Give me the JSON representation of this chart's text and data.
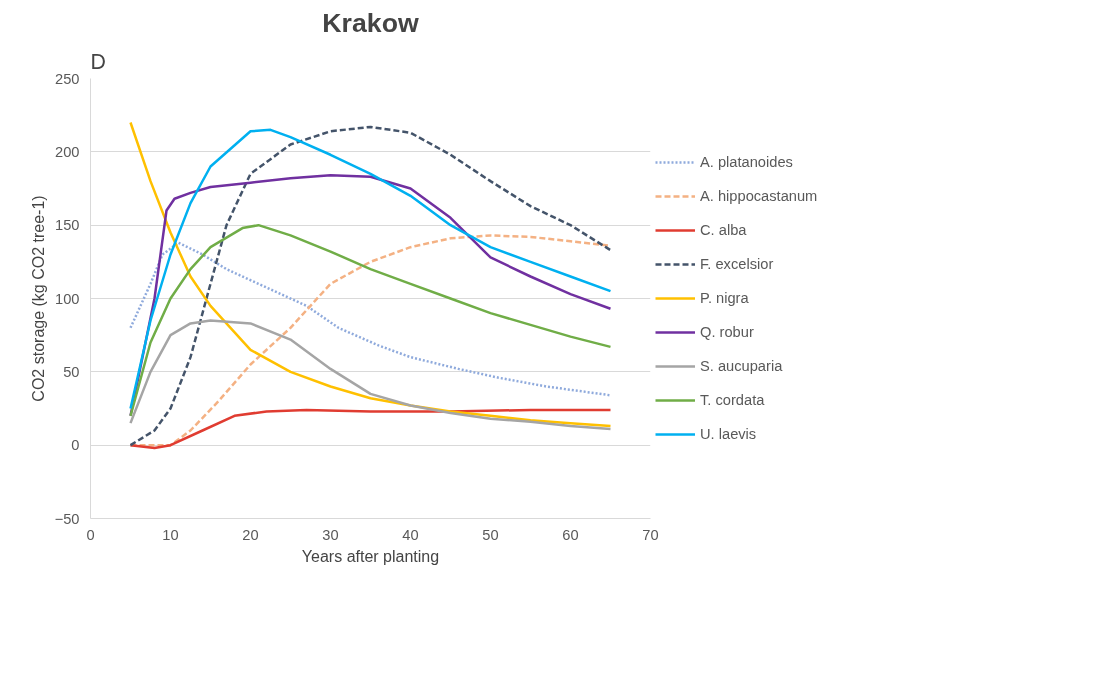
{
  "chart_data": {
    "type": "line",
    "title": "Krakow",
    "xlabel": "Years after planting",
    "ylabel": "CO2 storage (kg CO2 tree-1)",
    "annotations": [
      "D"
    ],
    "xlim": [
      0,
      70
    ],
    "ylim": [
      -50,
      250
    ],
    "xticks": [
      0,
      10,
      20,
      30,
      40,
      50,
      60,
      70
    ],
    "yticks": [
      -50,
      0,
      50,
      100,
      150,
      200,
      250
    ],
    "grid": "y",
    "legend": "right",
    "marker": "none",
    "series": [
      {
        "name": "A. platanoides",
        "color": "#8faadc",
        "line_style": "dotted",
        "x": [
          5,
          7.5,
          9,
          11,
          14,
          17,
          21,
          27,
          31,
          36,
          40,
          46,
          51,
          57,
          65
        ],
        "values": [
          80,
          110,
          130,
          138,
          130,
          120,
          110,
          95,
          80,
          68,
          60,
          52,
          46,
          40,
          34
        ]
      },
      {
        "name": "A. hippocastanum",
        "color": "#f4b183",
        "line_style": "dashed",
        "x": [
          5,
          8,
          10,
          12.5,
          16,
          20,
          25,
          30,
          35,
          40,
          45,
          50,
          55,
          60,
          65
        ],
        "values": [
          0,
          0,
          0,
          10,
          30,
          55,
          80,
          110,
          125,
          135,
          141,
          143,
          142,
          139,
          136
        ]
      },
      {
        "name": "C. alba",
        "color": "#e03c31",
        "line_style": "solid",
        "x": [
          5,
          8,
          10,
          14,
          18,
          22,
          27,
          35,
          45,
          55,
          65
        ],
        "values": [
          0,
          -2,
          0,
          10,
          20,
          23,
          24,
          23,
          23,
          24,
          24
        ]
      },
      {
        "name": "F. excelsior",
        "color": "#44546a",
        "line_style": "dashed",
        "x": [
          5,
          8,
          10,
          12.5,
          15,
          17,
          20,
          25,
          30,
          35,
          40,
          45,
          50,
          55,
          60,
          65
        ],
        "values": [
          0,
          10,
          25,
          60,
          110,
          150,
          185,
          205,
          214,
          217,
          213,
          198,
          180,
          163,
          150,
          133
        ]
      },
      {
        "name": "P. nigra",
        "color": "#ffc000",
        "line_style": "solid",
        "x": [
          5,
          7.5,
          10,
          12.5,
          15,
          20,
          25,
          30,
          35,
          40,
          45,
          50,
          55,
          60,
          65
        ],
        "values": [
          220,
          180,
          145,
          115,
          95,
          65,
          50,
          40,
          32,
          27,
          23,
          20,
          17,
          15,
          13
        ]
      },
      {
        "name": "Q. robur",
        "color": "#7030a0",
        "line_style": "solid",
        "x": [
          5,
          8,
          9.5,
          10.5,
          12.5,
          15,
          20,
          25,
          30,
          35,
          40,
          45,
          50,
          55,
          60,
          65
        ],
        "values": [
          20,
          100,
          160,
          168,
          172,
          176,
          179,
          182,
          184,
          183,
          175,
          155,
          128,
          115,
          103,
          93
        ]
      },
      {
        "name": "S. aucuparia",
        "color": "#a5a5a5",
        "line_style": "solid",
        "x": [
          5,
          7.5,
          10,
          12.5,
          15,
          20,
          25,
          30,
          35,
          40,
          45,
          50,
          55,
          60,
          65
        ],
        "values": [
          15,
          50,
          75,
          83,
          85,
          83,
          72,
          52,
          35,
          27,
          22,
          18,
          16,
          13,
          11
        ]
      },
      {
        "name": "T. cordata",
        "color": "#70ad47",
        "line_style": "solid",
        "x": [
          5,
          7.5,
          10,
          12.5,
          15,
          19,
          21,
          25,
          30,
          35,
          40,
          45,
          50,
          55,
          60,
          65
        ],
        "values": [
          20,
          70,
          100,
          120,
          135,
          148,
          150,
          143,
          132,
          120,
          110,
          100,
          90,
          82,
          74,
          67
        ]
      },
      {
        "name": "U. laevis",
        "color": "#00b0f0",
        "line_style": "solid",
        "x": [
          5,
          7.5,
          10,
          12.5,
          15,
          20,
          22.5,
          25,
          30,
          35,
          40,
          45,
          50,
          55,
          60,
          65
        ],
        "values": [
          25,
          85,
          130,
          165,
          190,
          214,
          215,
          210,
          198,
          185,
          170,
          150,
          135,
          125,
          115,
          105
        ]
      }
    ]
  }
}
